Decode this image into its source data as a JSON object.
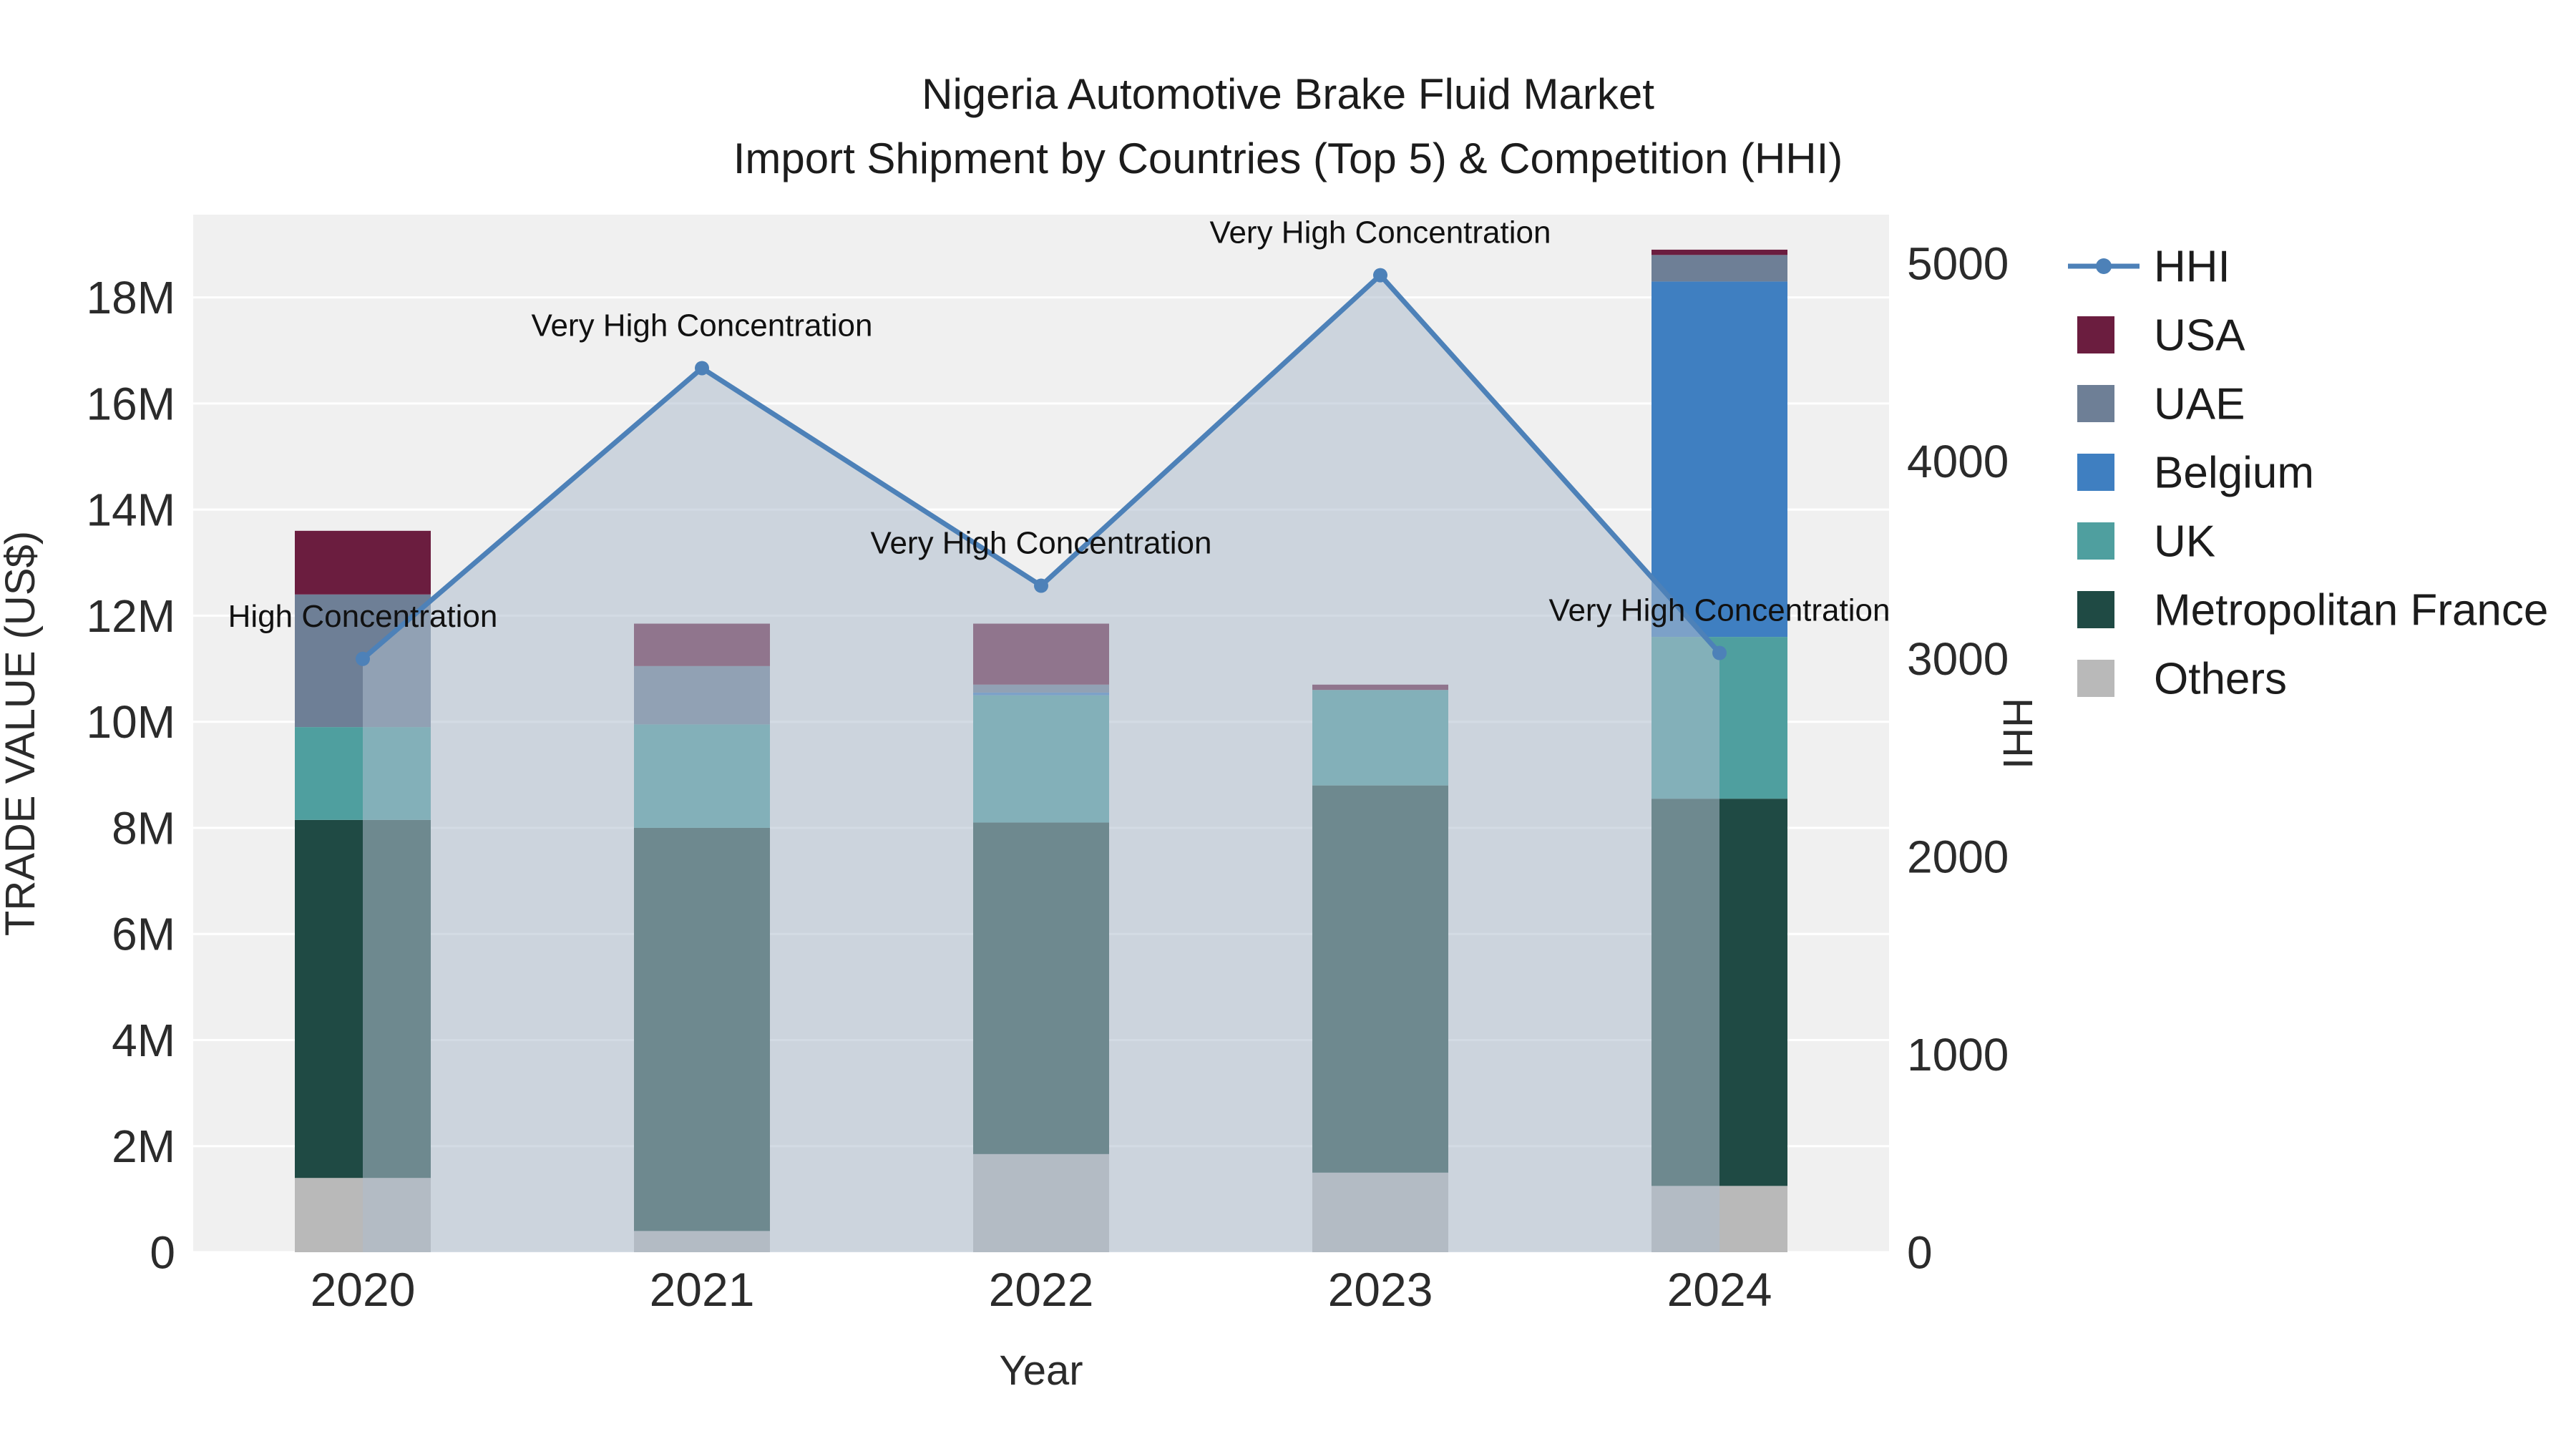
{
  "chart_data": {
    "type": "bar",
    "subtype": "stacked-bar-with-line-overlay",
    "title_line1": "Nigeria Automotive Brake Fluid Market",
    "title_line2": "Import Shipment by Countries (Top 5) & Competition (HHI)",
    "xlabel": "Year",
    "ylabel_left": "TRADE VALUE (US$)",
    "ylabel_right": "HHI",
    "categories": [
      "2020",
      "2021",
      "2022",
      "2023",
      "2024"
    ],
    "bar_unit": "M US$",
    "bar_series": [
      {
        "name": "Others",
        "color": "#b9b9b9",
        "values": [
          1.4,
          0.4,
          1.85,
          1.5,
          1.25
        ]
      },
      {
        "name": "Metropolitan France",
        "color": "#1f4a44",
        "values": [
          6.75,
          7.6,
          6.25,
          7.3,
          7.3
        ]
      },
      {
        "name": "UK",
        "color": "#4f9f9f",
        "values": [
          1.75,
          1.95,
          2.4,
          1.8,
          3.05
        ]
      },
      {
        "name": "Belgium",
        "color": "#3f7fc1",
        "values": [
          0,
          0,
          0.05,
          0,
          6.7
        ]
      },
      {
        "name": "UAE",
        "color": "#6e7f96",
        "values": [
          2.5,
          1.1,
          0.15,
          0,
          0.5
        ]
      },
      {
        "name": "USA",
        "color": "#6b1d3f",
        "values": [
          1.2,
          0.8,
          1.15,
          0.1,
          0.1
        ]
      }
    ],
    "bar_totals": [
      13.6,
      11.85,
      11.85,
      10.7,
      18.9
    ],
    "line_series": {
      "name": "HHI",
      "color": "#4d81b8",
      "area_color": "rgba(174,190,206,0.55)",
      "values": [
        3000,
        4470,
        3370,
        4940,
        3030
      ]
    },
    "annotations": [
      "High Concentration",
      "Very High Concentration",
      "Very High Concentration",
      "Very High Concentration",
      "Very High Concentration"
    ],
    "y_left": {
      "labels": [
        "0",
        "2M",
        "4M",
        "6M",
        "8M",
        "10M",
        "12M",
        "14M",
        "16M",
        "18M"
      ],
      "values": [
        0,
        2,
        4,
        6,
        8,
        10,
        12,
        14,
        16,
        18
      ],
      "max": 19.56
    },
    "y_right": {
      "labels": [
        "0",
        "1000",
        "2000",
        "3000",
        "4000",
        "5000"
      ],
      "values": [
        0,
        1000,
        2000,
        3000,
        4000,
        5000
      ],
      "max": 5246
    },
    "legend": [
      {
        "label": "HHI",
        "type": "line",
        "color": "#4d81b8"
      },
      {
        "label": "USA",
        "type": "box",
        "color": "#6b1d3f"
      },
      {
        "label": "UAE",
        "type": "box",
        "color": "#6e7f96"
      },
      {
        "label": "Belgium",
        "type": "box",
        "color": "#3f7fc1"
      },
      {
        "label": "UK",
        "type": "box",
        "color": "#4f9f9f"
      },
      {
        "label": "Metropolitan France",
        "type": "box",
        "color": "#1f4a44"
      },
      {
        "label": "Others",
        "type": "box",
        "color": "#b9b9b9"
      }
    ],
    "colors": {
      "plot_bg": "#f0f0f0",
      "grid": "#ffffff",
      "text": "#2b2b2b",
      "title_text": "#1c1c1c",
      "annotation_text": "#111111"
    }
  }
}
